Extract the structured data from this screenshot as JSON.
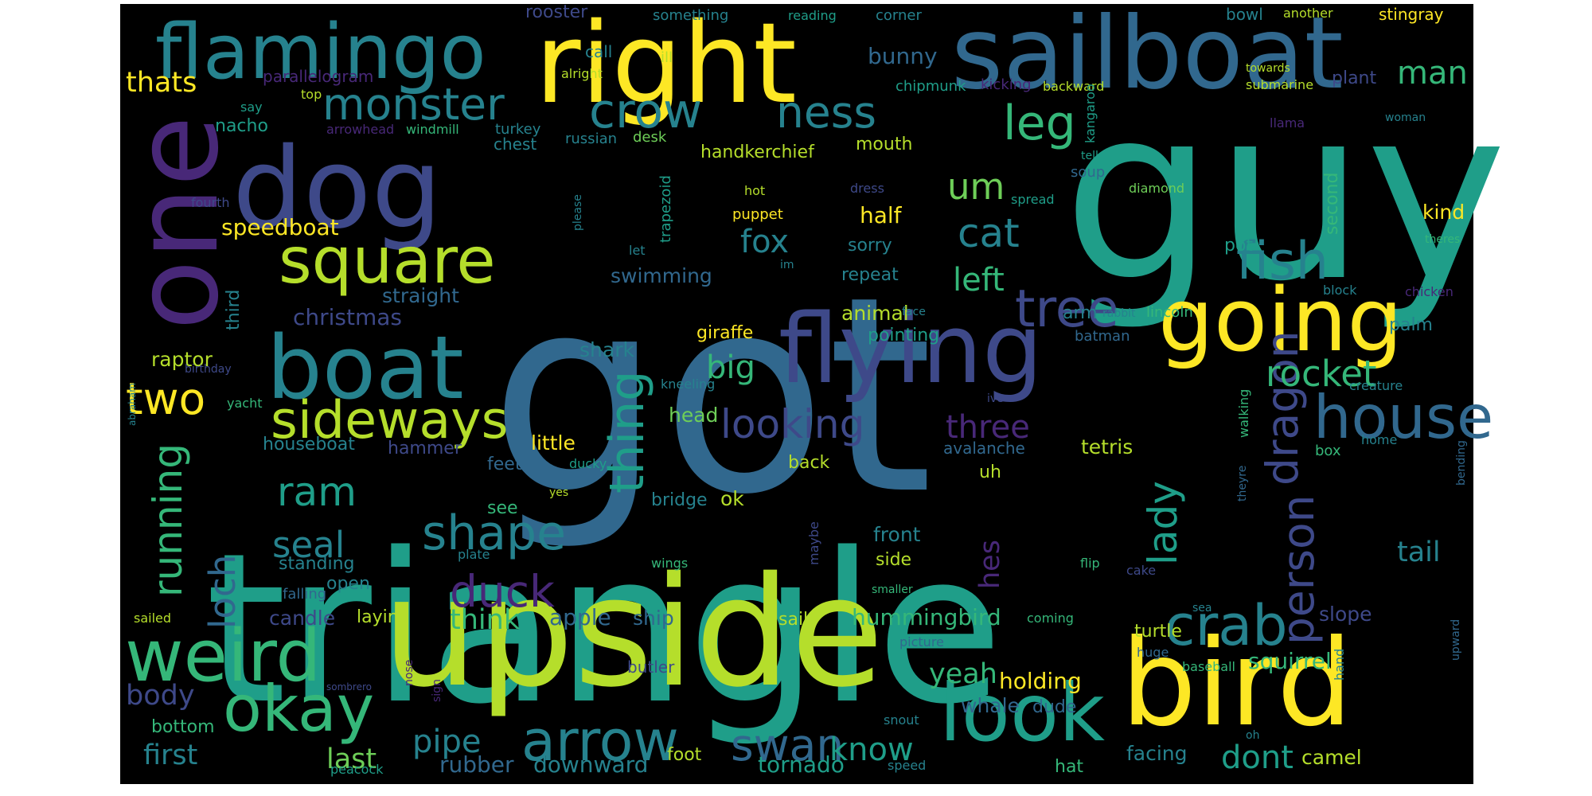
{
  "word_cloud": {
    "background": "#000000",
    "palette": [
      "#fde725",
      "#b5de2b",
      "#6ece58",
      "#35b779",
      "#1f9e89",
      "#26828e",
      "#31688e",
      "#3e4989",
      "#482878",
      "#440154"
    ],
    "words": [
      {
        "text": "triangle",
        "color": "#1f9e89"
      },
      {
        "text": "got",
        "color": "#31688e"
      },
      {
        "text": "guy",
        "color": "#1f9e89"
      },
      {
        "text": "upside",
        "color": "#b5de2b"
      },
      {
        "text": "right",
        "color": "#fde725"
      },
      {
        "text": "sailboat",
        "color": "#31688e"
      },
      {
        "text": "bird",
        "color": "#fde725"
      },
      {
        "text": "one",
        "color": "#482878"
      },
      {
        "text": "dog",
        "color": "#3e4989"
      },
      {
        "text": "flying",
        "color": "#3e4989"
      },
      {
        "text": "flamingo",
        "color": "#26828e"
      },
      {
        "text": "going",
        "color": "#fde725"
      },
      {
        "text": "boat",
        "color": "#26828e"
      },
      {
        "text": "look",
        "color": "#1f9e89"
      },
      {
        "text": "weird",
        "color": "#35b779"
      },
      {
        "text": "square",
        "color": "#b5de2b"
      },
      {
        "text": "okay",
        "color": "#35b779"
      },
      {
        "text": "house",
        "color": "#31688e"
      },
      {
        "text": "arrow",
        "color": "#26828e"
      },
      {
        "text": "crab",
        "color": "#26828e"
      },
      {
        "text": "sideways",
        "color": "#b5de2b"
      },
      {
        "text": "tree",
        "color": "#3e4989"
      },
      {
        "text": "monster",
        "color": "#26828e"
      },
      {
        "text": "fish",
        "color": "#26828e"
      },
      {
        "text": "crow",
        "color": "#26828e"
      },
      {
        "text": "ness",
        "color": "#26828e"
      },
      {
        "text": "leg",
        "color": "#35b779"
      },
      {
        "text": "shape",
        "color": "#26828e"
      },
      {
        "text": "two",
        "color": "#fde725"
      },
      {
        "text": "thing",
        "color": "#1f9e89"
      },
      {
        "text": "dragon",
        "color": "#3e4989"
      },
      {
        "text": "running",
        "color": "#35b779"
      },
      {
        "text": "duck",
        "color": "#482878"
      },
      {
        "text": "swan",
        "color": "#31688e"
      },
      {
        "text": "person",
        "color": "#3e4989"
      },
      {
        "text": "looking",
        "color": "#3e4989"
      },
      {
        "text": "cat",
        "color": "#26828e"
      },
      {
        "text": "lady",
        "color": "#1f9e89"
      },
      {
        "text": "loch",
        "color": "#31688e"
      },
      {
        "text": "ram",
        "color": "#1f9e89"
      },
      {
        "text": "rocket",
        "color": "#35b779"
      },
      {
        "text": "seal",
        "color": "#26828e"
      },
      {
        "text": "um",
        "color": "#6ece58"
      },
      {
        "text": "fox",
        "color": "#26828e"
      },
      {
        "text": "left",
        "color": "#35b779"
      },
      {
        "text": "three",
        "color": "#482878"
      },
      {
        "text": "big",
        "color": "#35b779"
      },
      {
        "text": "man",
        "color": "#35b779"
      },
      {
        "text": "thats",
        "color": "#fde725"
      },
      {
        "text": "know",
        "color": "#1f9e89"
      },
      {
        "text": "pipe",
        "color": "#26828e"
      },
      {
        "text": "last",
        "color": "#6ece58"
      },
      {
        "text": "first",
        "color": "#26828e"
      },
      {
        "text": "body",
        "color": "#3e4989"
      },
      {
        "text": "think",
        "color": "#35b779"
      },
      {
        "text": "dont",
        "color": "#1f9e89"
      },
      {
        "text": "hes",
        "color": "#482878"
      },
      {
        "text": "tail",
        "color": "#26828e"
      },
      {
        "text": "yeah",
        "color": "#35b779"
      },
      {
        "text": "speedboat",
        "color": "#fde725"
      },
      {
        "text": "christmas",
        "color": "#3e4989"
      },
      {
        "text": "hummingbird",
        "color": "#35b779"
      },
      {
        "text": "squirrel",
        "color": "#35b779"
      },
      {
        "text": "holding",
        "color": "#fde725"
      },
      {
        "text": "downward",
        "color": "#26828e"
      },
      {
        "text": "rubber",
        "color": "#31688e"
      },
      {
        "text": "tornado",
        "color": "#1f9e89"
      },
      {
        "text": "apple",
        "color": "#31688e"
      },
      {
        "text": "bunny",
        "color": "#31688e"
      },
      {
        "text": "half",
        "color": "#fde725"
      },
      {
        "text": "handkerchief",
        "color": "#b5de2b"
      },
      {
        "text": "raptor",
        "color": "#b5de2b"
      },
      {
        "text": "straight",
        "color": "#31688e"
      },
      {
        "text": "swimming",
        "color": "#31688e"
      },
      {
        "text": "animal",
        "color": "#b5de2b"
      },
      {
        "text": "giraffe",
        "color": "#fde725"
      },
      {
        "text": "shark",
        "color": "#26828e"
      },
      {
        "text": "head",
        "color": "#6ece58"
      },
      {
        "text": "little",
        "color": "#fde725"
      },
      {
        "text": "back",
        "color": "#b5de2b"
      },
      {
        "text": "bridge",
        "color": "#26828e"
      },
      {
        "text": "ok",
        "color": "#b5de2b"
      },
      {
        "text": "slope",
        "color": "#3e4989"
      },
      {
        "text": "candle",
        "color": "#3e4989"
      },
      {
        "text": "laying",
        "color": "#b5de2b"
      },
      {
        "text": "ship",
        "color": "#31688e"
      },
      {
        "text": "sail",
        "color": "#b5de2b"
      },
      {
        "text": "front",
        "color": "#26828e"
      },
      {
        "text": "side",
        "color": "#b5de2b"
      },
      {
        "text": "whale",
        "color": "#31688e"
      },
      {
        "text": "dude",
        "color": "#31688e"
      },
      {
        "text": "facing",
        "color": "#26828e"
      },
      {
        "text": "camel",
        "color": "#b5de2b"
      },
      {
        "text": "tetris",
        "color": "#b5de2b"
      },
      {
        "text": "avalanche",
        "color": "#31688e"
      },
      {
        "text": "houseboat",
        "color": "#26828e"
      },
      {
        "text": "hammer",
        "color": "#3e4989"
      },
      {
        "text": "standing",
        "color": "#26828e"
      },
      {
        "text": "open",
        "color": "#26828e"
      },
      {
        "text": "see",
        "color": "#35b779"
      },
      {
        "text": "feet",
        "color": "#31688e"
      },
      {
        "text": "bottom",
        "color": "#35b779"
      },
      {
        "text": "foot",
        "color": "#b5de2b"
      },
      {
        "text": "hat",
        "color": "#35b779"
      },
      {
        "text": "turtle",
        "color": "#b5de2b"
      },
      {
        "text": "palm",
        "color": "#26828e"
      },
      {
        "text": "second",
        "color": "#35b779"
      },
      {
        "text": "kind",
        "color": "#fde725"
      },
      {
        "text": "pot",
        "color": "#1f9e89"
      },
      {
        "text": "repeat",
        "color": "#26828e"
      },
      {
        "text": "sorry",
        "color": "#26828e"
      },
      {
        "text": "pointing",
        "color": "#1f9e89"
      },
      {
        "text": "arm",
        "color": "#26828e"
      },
      {
        "text": "third",
        "color": "#26828e"
      },
      {
        "text": "uh",
        "color": "#b5de2b"
      },
      {
        "text": "nacho",
        "color": "#1f9e89"
      },
      {
        "text": "mouth",
        "color": "#b5de2b"
      },
      {
        "text": "parallelogram",
        "color": "#482878"
      },
      {
        "text": "rooster",
        "color": "#3e4989"
      },
      {
        "text": "something",
        "color": "#26828e"
      },
      {
        "text": "reading",
        "color": "#1f9e89"
      },
      {
        "text": "corner",
        "color": "#26828e"
      },
      {
        "text": "bowl",
        "color": "#26828e"
      },
      {
        "text": "another",
        "color": "#b5de2b"
      },
      {
        "text": "stingray",
        "color": "#fde725"
      },
      {
        "text": "call",
        "color": "#26828e"
      },
      {
        "text": "ill",
        "color": "#b5de2b"
      },
      {
        "text": "alright",
        "color": "#b5de2b"
      },
      {
        "text": "chipmunk",
        "color": "#1f9e89"
      },
      {
        "text": "kicking",
        "color": "#482878"
      },
      {
        "text": "backward",
        "color": "#b5de2b"
      },
      {
        "text": "submarine",
        "color": "#b5de2b"
      },
      {
        "text": "towards",
        "color": "#b5de2b"
      },
      {
        "text": "plant",
        "color": "#3e4989"
      },
      {
        "text": "top",
        "color": "#b5de2b"
      },
      {
        "text": "say",
        "color": "#1f9e89"
      },
      {
        "text": "arrowhead",
        "color": "#482878"
      },
      {
        "text": "windmill",
        "color": "#35b779"
      },
      {
        "text": "turkey",
        "color": "#26828e"
      },
      {
        "text": "chest",
        "color": "#26828e"
      },
      {
        "text": "russian",
        "color": "#26828e"
      },
      {
        "text": "desk",
        "color": "#6ece58"
      },
      {
        "text": "llama",
        "color": "#482878"
      },
      {
        "text": "woman",
        "color": "#26828e"
      },
      {
        "text": "kangaroo",
        "color": "#1f9e89"
      },
      {
        "text": "tell",
        "color": "#1f9e89"
      },
      {
        "text": "soup",
        "color": "#31688e"
      },
      {
        "text": "dress",
        "color": "#3e4989"
      },
      {
        "text": "diamond",
        "color": "#6ece58"
      },
      {
        "text": "spread",
        "color": "#1f9e89"
      },
      {
        "text": "hot",
        "color": "#b5de2b"
      },
      {
        "text": "puppet",
        "color": "#fde725"
      },
      {
        "text": "please",
        "color": "#26828e"
      },
      {
        "text": "trapezoid",
        "color": "#1f9e89"
      },
      {
        "text": "fourth",
        "color": "#3e4989"
      },
      {
        "text": "let",
        "color": "#26828e"
      },
      {
        "text": "im",
        "color": "#26828e"
      },
      {
        "text": "face",
        "color": "#26828e"
      },
      {
        "text": "rabbit",
        "color": "#26828e"
      },
      {
        "text": "lincoln",
        "color": "#35b779"
      },
      {
        "text": "block",
        "color": "#26828e"
      },
      {
        "text": "chicken",
        "color": "#482878"
      },
      {
        "text": "theres",
        "color": "#35b779"
      },
      {
        "text": "batman",
        "color": "#31688e"
      },
      {
        "text": "creature",
        "color": "#26828e"
      },
      {
        "text": "ive",
        "color": "#3e4989"
      },
      {
        "text": "kneeling",
        "color": "#26828e"
      },
      {
        "text": "birthday",
        "color": "#3e4989"
      },
      {
        "text": "yacht",
        "color": "#35b779"
      },
      {
        "text": "abraham",
        "color": "#26828e"
      },
      {
        "text": "ducky",
        "color": "#1f9e89"
      },
      {
        "text": "walking",
        "color": "#35b779"
      },
      {
        "text": "box",
        "color": "#35b779"
      },
      {
        "text": "home",
        "color": "#26828e"
      },
      {
        "text": "bending",
        "color": "#31688e"
      },
      {
        "text": "yes",
        "color": "#b5de2b"
      },
      {
        "text": "theyre",
        "color": "#31688e"
      },
      {
        "text": "plate",
        "color": "#26828e"
      },
      {
        "text": "wings",
        "color": "#35b779"
      },
      {
        "text": "flip",
        "color": "#35b779"
      },
      {
        "text": "cake",
        "color": "#3e4989"
      },
      {
        "text": "maybe",
        "color": "#3e4989"
      },
      {
        "text": "smaller",
        "color": "#35b779"
      },
      {
        "text": "sea",
        "color": "#26828e"
      },
      {
        "text": "falling",
        "color": "#31688e"
      },
      {
        "text": "sailed",
        "color": "#b5de2b"
      },
      {
        "text": "coming",
        "color": "#35b779"
      },
      {
        "text": "picture",
        "color": "#31688e"
      },
      {
        "text": "huge",
        "color": "#31688e"
      },
      {
        "text": "hand",
        "color": "#26828e"
      },
      {
        "text": "upward",
        "color": "#31688e"
      },
      {
        "text": "baseball",
        "color": "#35b779"
      },
      {
        "text": "nose",
        "color": "#482878"
      },
      {
        "text": "sign",
        "color": "#482878"
      },
      {
        "text": "butler",
        "color": "#3e4989"
      },
      {
        "text": "snout",
        "color": "#26828e"
      },
      {
        "text": "sombrero",
        "color": "#3e4989"
      },
      {
        "text": "oh",
        "color": "#26828e"
      },
      {
        "text": "peacock",
        "color": "#1f9e89"
      },
      {
        "text": "speed",
        "color": "#26828e"
      }
    ]
  }
}
